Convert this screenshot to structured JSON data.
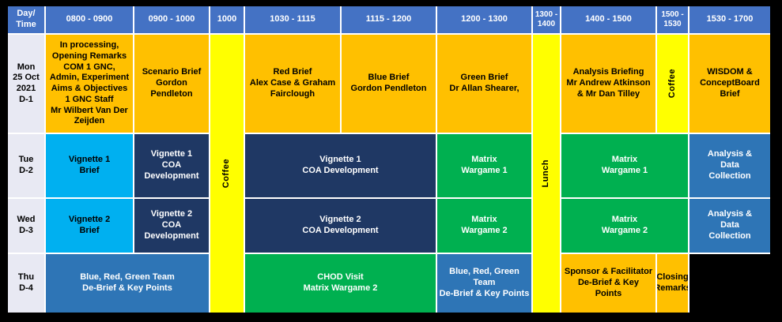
{
  "title": "Exercise schedule table",
  "colors": {
    "header_blue": "#4472C4",
    "orange": "#FFC000",
    "yellow": "#FFFF00",
    "cyan": "#00B0F0",
    "navy": "#1F3864",
    "green": "#00B050",
    "steel_blue": "#2E75B6",
    "day_column_bg": "#E8E9F3",
    "black_cell": "#000000"
  },
  "header": {
    "corner": "Day/\nTime",
    "t0800": "0800 - 0900",
    "t0900": "0900 - 1000",
    "t1000": "1000",
    "t1030": "1030 - 1115",
    "t1115": "1115 - 1200",
    "t1200": "1200 - 1300",
    "t1300": "1300 -\n1400",
    "t1400": "1400 - 1500",
    "t1500": "1500 -\n1530",
    "t1530": "1530 - 1700"
  },
  "breaks": {
    "coffee_am": "Coffee",
    "lunch": "Lunch",
    "coffee_pm": "Coffee"
  },
  "days": {
    "mon": {
      "label": "Mon\n25 Oct\n2021\nD-1",
      "slot0800": "In processing,\nOpening Remarks\nCOM 1 GNC,\nAdmin, Experiment\nAims & Objectives\n1 GNC Staff\nMr Wilbert Van Der Zeijden",
      "slot0900": "Scenario Brief\nGordon Pendleton",
      "slot1030": "Red Brief\nAlex Case & Graham Fairclough",
      "slot1115": "Blue Brief\nGordon Pendleton",
      "slot1200": "Green Brief\nDr Allan Shearer,",
      "slot1400": "Analysis Briefing\nMr Andrew Atkinson\n& Mr Dan Tilley",
      "slot1530": "WISDOM &\nConceptBoard Brief"
    },
    "tue": {
      "label": "Tue\nD-2",
      "slot0800": "Vignette 1\nBrief",
      "slot0900": "Vignette 1\nCOA\nDevelopment",
      "slot1030": "Vignette 1\nCOA Development",
      "slot1200": "Matrix\nWargame 1",
      "slot1400": "Matrix\nWargame 1",
      "slot1530": "Analysis &\nData\nCollection"
    },
    "wed": {
      "label": "Wed\nD-3",
      "slot0800": "Vignette 2\nBrief",
      "slot0900": "Vignette 2\nCOA\nDevelopment",
      "slot1030": "Vignette 2\nCOA Development",
      "slot1200": "Matrix\nWargame 2",
      "slot1400": "Matrix\nWargame 2",
      "slot1530": "Analysis &\nData\nCollection"
    },
    "thu": {
      "label": "Thu\nD-4",
      "slot0800": "Blue, Red, Green Team\nDe-Brief & Key Points",
      "slot1030": "CHOD Visit\nMatrix Wargame  2",
      "slot1200": "Blue, Red, Green\nTeam\nDe-Brief & Key Points",
      "slot1400": "Sponsor & Facilitator\nDe-Brief & Key\nPoints",
      "slot1500": "Closing\nRemarks",
      "slot1530": ""
    }
  }
}
